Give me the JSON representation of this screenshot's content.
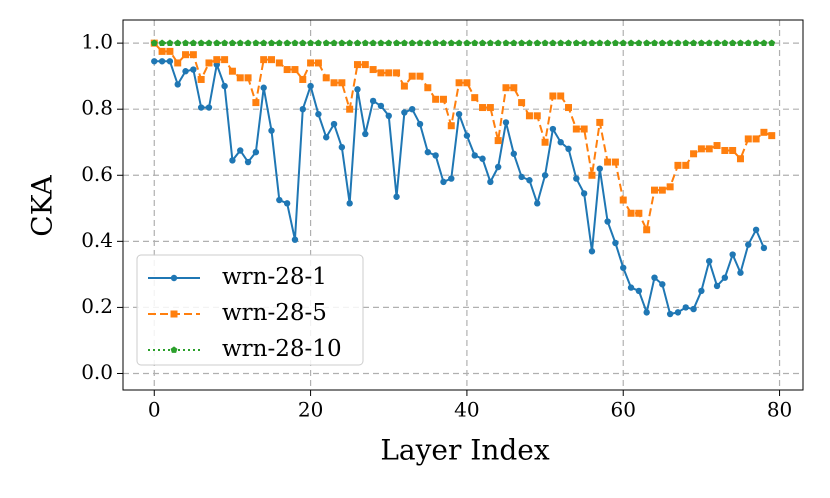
{
  "chart_data": {
    "type": "line",
    "xlabel": "Layer Index",
    "ylabel": "CKA",
    "x": [
      0,
      1,
      2,
      3,
      4,
      5,
      6,
      7,
      8,
      9,
      10,
      11,
      12,
      13,
      14,
      15,
      16,
      17,
      18,
      19,
      20,
      21,
      22,
      23,
      24,
      25,
      26,
      27,
      28,
      29,
      30,
      31,
      32,
      33,
      34,
      35,
      36,
      37,
      38,
      39,
      40,
      41,
      42,
      43,
      44,
      45,
      46,
      47,
      48,
      49,
      50,
      51,
      52,
      53,
      54,
      55,
      56,
      57,
      58,
      59,
      60,
      61,
      62,
      63,
      64,
      65,
      66,
      67,
      68,
      69,
      70,
      71,
      72,
      73,
      74,
      75,
      76,
      77,
      78,
      79
    ],
    "series": [
      {
        "name": "wrn-28-1",
        "color": "#1f77b4",
        "linestyle": "solid",
        "marker": "circle",
        "values": [
          0.945,
          0.945,
          0.945,
          0.875,
          0.915,
          0.92,
          0.805,
          0.805,
          0.935,
          0.87,
          0.645,
          0.675,
          0.64,
          0.67,
          0.865,
          0.735,
          0.525,
          0.515,
          0.405,
          0.8,
          0.87,
          0.785,
          0.715,
          0.755,
          0.685,
          0.515,
          0.86,
          0.725,
          0.825,
          0.81,
          0.78,
          0.535,
          0.79,
          0.8,
          0.755,
          0.67,
          0.66,
          0.58,
          0.59,
          0.785,
          0.72,
          0.66,
          0.65,
          0.58,
          0.625,
          0.76,
          0.665,
          0.595,
          0.585,
          0.515,
          0.6,
          0.74,
          0.7,
          0.68,
          0.59,
          0.545,
          0.37,
          0.62,
          0.46,
          0.395,
          0.32,
          0.26,
          0.25,
          0.185,
          0.29,
          0.27,
          0.18,
          0.185,
          0.2,
          0.195,
          0.25,
          0.34,
          0.265,
          0.29,
          0.36,
          0.305,
          0.39,
          0.435,
          0.38,
          null
        ]
      },
      {
        "name": "wrn-28-5",
        "color": "#ff7f0e",
        "linestyle": "dashed",
        "marker": "square",
        "values": [
          1.0,
          0.975,
          0.975,
          0.94,
          0.965,
          0.965,
          0.89,
          0.94,
          0.95,
          0.95,
          0.915,
          0.895,
          0.895,
          0.82,
          0.95,
          0.95,
          0.94,
          0.92,
          0.92,
          0.89,
          0.94,
          0.94,
          0.895,
          0.88,
          0.88,
          0.8,
          0.935,
          0.935,
          0.92,
          0.91,
          0.91,
          0.91,
          0.87,
          0.9,
          0.9,
          0.865,
          0.83,
          0.83,
          0.75,
          0.88,
          0.88,
          0.835,
          0.805,
          0.805,
          0.705,
          0.865,
          0.865,
          0.82,
          0.78,
          0.78,
          0.7,
          0.84,
          0.84,
          0.805,
          0.74,
          0.74,
          0.6,
          0.76,
          0.64,
          0.64,
          0.525,
          0.485,
          0.485,
          0.435,
          0.555,
          0.555,
          0.565,
          0.63,
          0.63,
          0.665,
          0.68,
          0.68,
          0.69,
          0.675,
          0.675,
          0.65,
          0.71,
          0.71,
          0.73,
          0.72
        ]
      },
      {
        "name": "wrn-28-10",
        "color": "#2ca02c",
        "linestyle": "dotted",
        "marker": "pentagon",
        "values": [
          1.0,
          1.0,
          1.0,
          1.0,
          1.0,
          1.0,
          1.0,
          1.0,
          1.0,
          1.0,
          1.0,
          1.0,
          1.0,
          1.0,
          1.0,
          1.0,
          1.0,
          1.0,
          1.0,
          1.0,
          1.0,
          1.0,
          1.0,
          1.0,
          1.0,
          1.0,
          1.0,
          1.0,
          1.0,
          1.0,
          1.0,
          1.0,
          1.0,
          1.0,
          1.0,
          1.0,
          1.0,
          1.0,
          1.0,
          1.0,
          1.0,
          1.0,
          1.0,
          1.0,
          1.0,
          1.0,
          1.0,
          1.0,
          1.0,
          1.0,
          1.0,
          1.0,
          1.0,
          1.0,
          1.0,
          1.0,
          1.0,
          1.0,
          1.0,
          1.0,
          1.0,
          1.0,
          1.0,
          1.0,
          1.0,
          1.0,
          1.0,
          1.0,
          1.0,
          1.0,
          1.0,
          1.0,
          1.0,
          1.0,
          1.0,
          1.0,
          1.0,
          1.0,
          1.0,
          1.0
        ]
      }
    ],
    "xlim": [
      -4,
      83
    ],
    "ylim": [
      -0.05,
      1.07
    ],
    "xticks": [
      0,
      20,
      40,
      60,
      80
    ],
    "yticks": [
      {
        "value": 0,
        "label": "0.0"
      },
      0.2,
      0.4,
      0.6,
      0.8,
      {
        "value": 1,
        "label": "1.0"
      }
    ],
    "grid": true,
    "legend": "lower left"
  }
}
